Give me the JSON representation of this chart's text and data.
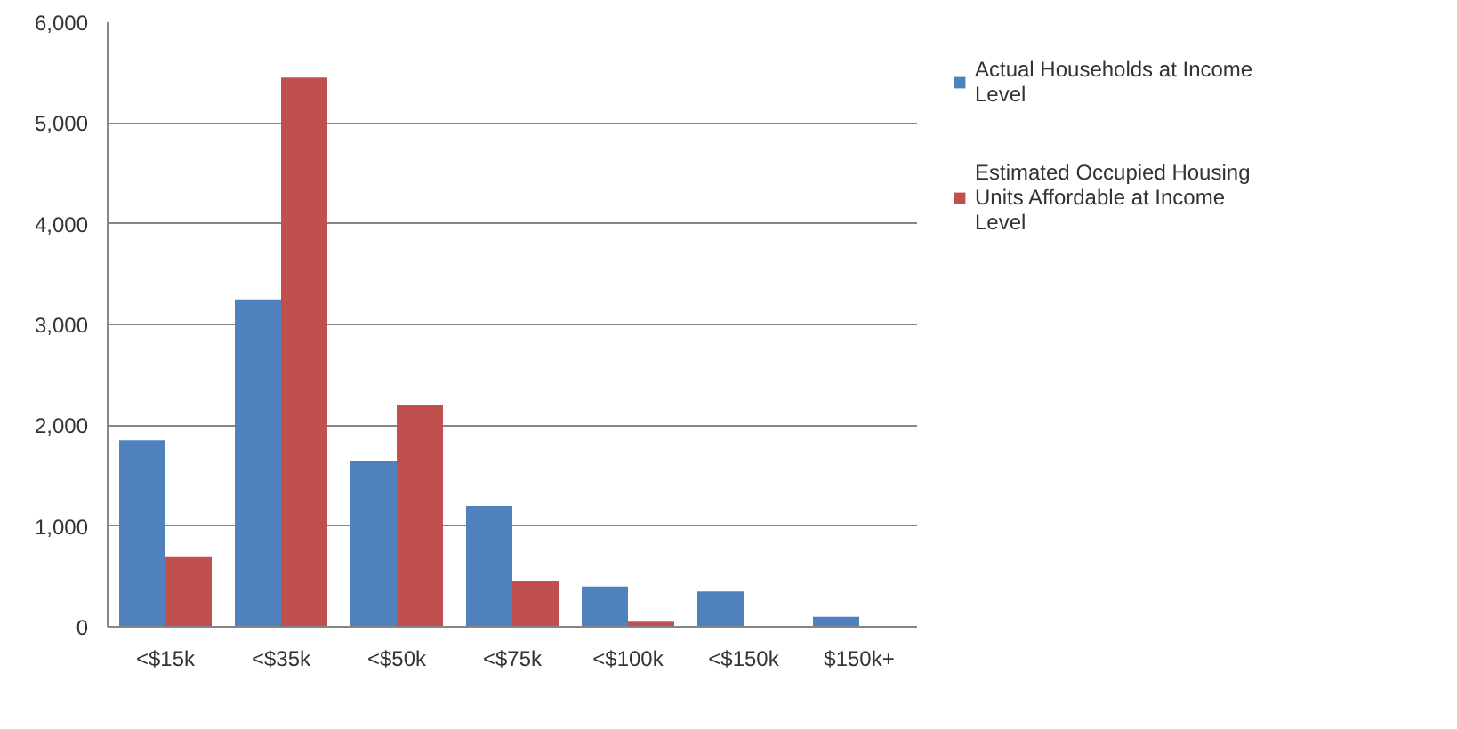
{
  "chart_data": {
    "type": "bar",
    "categories": [
      "<$15k",
      "<$35k",
      "<$50k",
      "<$75k",
      "<$100k",
      "<$150k",
      "$150k+"
    ],
    "series": [
      {
        "name": "Actual Households at Income Level",
        "color": "#4f81bd",
        "values": [
          1850,
          3250,
          1650,
          1200,
          400,
          350,
          100
        ]
      },
      {
        "name": "Estimated Occupied Housing Units Affordable at Income Level",
        "color": "#c0504d",
        "values": [
          700,
          5450,
          2200,
          450,
          50,
          0,
          0
        ]
      }
    ],
    "ylim": [
      0,
      6000
    ],
    "yticks": [
      {
        "value": 0,
        "label": "0"
      },
      {
        "value": 1000,
        "label": "1,000"
      },
      {
        "value": 2000,
        "label": "2,000"
      },
      {
        "value": 3000,
        "label": "3,000"
      },
      {
        "value": 4000,
        "label": "4,000"
      },
      {
        "value": 5000,
        "label": "5,000"
      },
      {
        "value": 6000,
        "label": "6,000"
      }
    ],
    "grid": "y",
    "legend": "right"
  }
}
